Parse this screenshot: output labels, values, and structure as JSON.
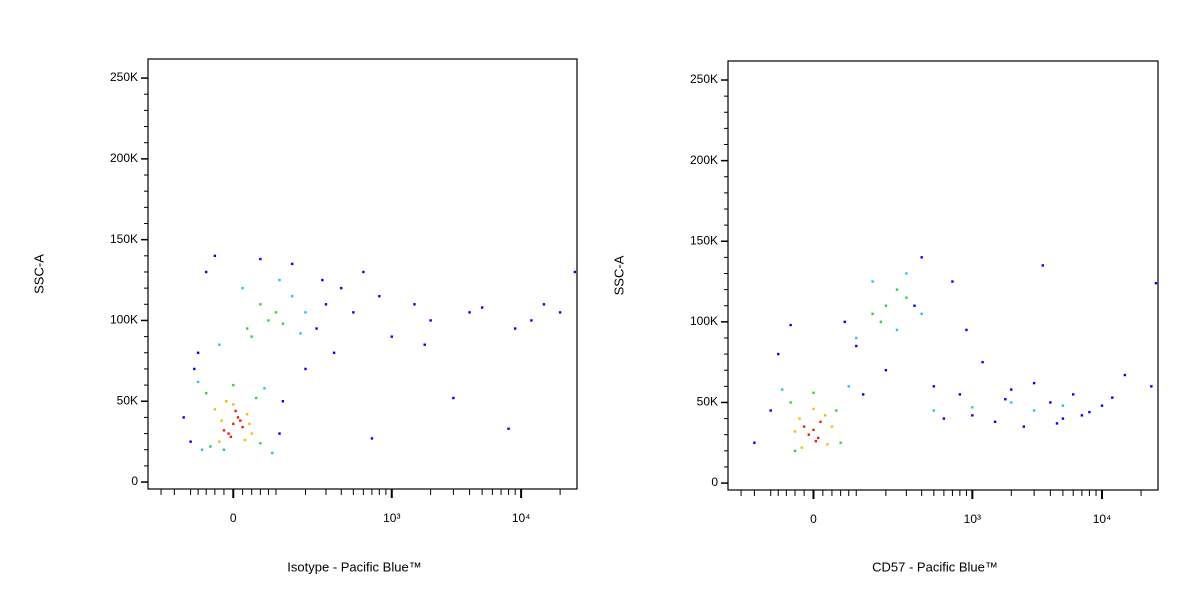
{
  "chart_data": [
    {
      "type": "scatter",
      "x_label": "Isotype - Pacific Blue™",
      "y_label": "SSC-A",
      "xscale": "asinh",
      "xlim": [
        -260,
        27000
      ],
      "ylim": [
        -4300,
        261800
      ],
      "xticks": [
        0,
        {
          "value": 1000,
          "label": "10³"
        },
        {
          "value": 10000,
          "label": "10⁴"
        }
      ],
      "xticks_minor": [
        -200,
        -150,
        -100,
        -80,
        -60,
        -40,
        -20,
        20,
        40,
        60,
        80,
        100,
        200,
        300,
        400,
        500,
        600,
        700,
        800,
        900,
        2000,
        3000,
        4000,
        5000,
        6000,
        7000,
        8000,
        9000,
        20000
      ],
      "yticks": [
        0,
        {
          "value": 50000,
          "label": "50K"
        },
        {
          "value": 100000,
          "label": "100K"
        },
        {
          "value": 150000,
          "label": "150K"
        },
        {
          "value": 200000,
          "label": "200K"
        },
        {
          "value": 250000,
          "label": "250K"
        }
      ],
      "yticks_minor": [
        10000,
        20000,
        30000,
        40000,
        60000,
        70000,
        80000,
        90000,
        110000,
        120000,
        130000,
        140000,
        160000,
        170000,
        180000,
        190000,
        210000,
        220000,
        230000,
        240000
      ],
      "series": [
        {
          "color": "#0000ff",
          "x": [
            -120,
            -100,
            120,
            110,
            -90,
            250,
            300,
            350,
            400,
            -60,
            -40,
            150,
            500,
            200,
            280,
            600,
            800,
            1000,
            1500,
            2000,
            3000,
            5000,
            8000,
            12000,
            20000,
            26000,
            700,
            1800,
            9000,
            15000,
            4000,
            -80,
            60
          ],
          "y": [
            40000,
            25000,
            50000,
            30000,
            70000,
            95000,
            110000,
            80000,
            120000,
            130000,
            140000,
            135000,
            105000,
            70000,
            125000,
            130000,
            115000,
            90000,
            110000,
            100000,
            52000,
            108000,
            33000,
            100000,
            105000,
            130000,
            27000,
            85000,
            95000,
            110000,
            105000,
            80000,
            138000
          ]
        },
        {
          "color": "#20c4ec",
          "x": [
            -80,
            70,
            -70,
            90,
            150,
            20,
            180,
            110,
            -30,
            200
          ],
          "y": [
            62000,
            58000,
            20000,
            18000,
            115000,
            120000,
            92000,
            125000,
            85000,
            105000
          ]
        },
        {
          "color": "#30d040",
          "x": [
            -60,
            50,
            -50,
            60,
            0,
            30,
            80,
            100,
            60,
            120,
            -20,
            40
          ],
          "y": [
            55000,
            52000,
            22000,
            24000,
            60000,
            95000,
            100000,
            105000,
            110000,
            98000,
            20000,
            90000
          ]
        },
        {
          "color": "#f0c000",
          "x": [
            -40,
            30,
            -30,
            40,
            -15,
            25,
            0,
            -25,
            35
          ],
          "y": [
            45000,
            42000,
            25000,
            30000,
            50000,
            26000,
            48000,
            38000,
            36000
          ]
        },
        {
          "color": "#e82010",
          "x": [
            -20,
            0,
            10,
            -10,
            20,
            5,
            -5,
            15
          ],
          "y": [
            32000,
            36000,
            40000,
            30000,
            34000,
            44000,
            28000,
            38000
          ]
        }
      ]
    },
    {
      "type": "scatter",
      "x_label": "CD57 - Pacific Blue™",
      "y_label": "SSC-A",
      "xscale": "asinh",
      "xlim": [
        -260,
        27000
      ],
      "ylim": [
        -4300,
        261800
      ],
      "xticks": [
        0,
        {
          "value": 1000,
          "label": "10³"
        },
        {
          "value": 10000,
          "label": "10⁴"
        }
      ],
      "xticks_minor": [
        -200,
        -150,
        -100,
        -80,
        -60,
        -40,
        -20,
        20,
        40,
        60,
        80,
        100,
        200,
        300,
        400,
        500,
        600,
        700,
        800,
        900,
        2000,
        3000,
        4000,
        5000,
        6000,
        7000,
        8000,
        9000,
        20000
      ],
      "yticks": [
        0,
        {
          "value": 50000,
          "label": "50K"
        },
        {
          "value": 100000,
          "label": "100K"
        },
        {
          "value": 150000,
          "label": "150K"
        },
        {
          "value": 200000,
          "label": "200K"
        },
        {
          "value": 250000,
          "label": "250K"
        }
      ],
      "yticks_minor": [
        10000,
        20000,
        30000,
        40000,
        60000,
        70000,
        80000,
        90000,
        110000,
        120000,
        130000,
        140000,
        160000,
        170000,
        180000,
        190000,
        210000,
        220000,
        230000,
        240000
      ],
      "series": [
        {
          "color": "#0000ff",
          "x": [
            -150,
            -100,
            120,
            -80,
            70,
            500,
            600,
            800,
            1000,
            1500,
            2000,
            2500,
            3000,
            4000,
            5000,
            6000,
            8000,
            10000,
            12000,
            400,
            700,
            900,
            1200,
            3500,
            7000,
            200,
            -50,
            350,
            1800,
            15000,
            24000,
            26000,
            100,
            4500
          ],
          "y": [
            25000,
            45000,
            55000,
            80000,
            100000,
            60000,
            40000,
            55000,
            42000,
            38000,
            58000,
            35000,
            62000,
            50000,
            40000,
            55000,
            44000,
            48000,
            53000,
            140000,
            125000,
            95000,
            75000,
            135000,
            42000,
            70000,
            98000,
            110000,
            52000,
            67000,
            60000,
            124000,
            85000,
            37000
          ]
        },
        {
          "color": "#20c4ec",
          "x": [
            -70,
            80,
            100,
            150,
            300,
            400,
            250,
            2000,
            3000,
            5000,
            1000,
            500
          ],
          "y": [
            58000,
            60000,
            90000,
            125000,
            130000,
            105000,
            95000,
            50000,
            45000,
            48000,
            47000,
            45000
          ]
        },
        {
          "color": "#30d040",
          "x": [
            -50,
            50,
            0,
            60,
            200,
            250,
            180,
            300,
            -40,
            150
          ],
          "y": [
            50000,
            45000,
            56000,
            25000,
            110000,
            120000,
            100000,
            115000,
            20000,
            105000
          ]
        },
        {
          "color": "#f0c000",
          "x": [
            -30,
            25,
            -25,
            30,
            0,
            -40,
            40
          ],
          "y": [
            40000,
            42000,
            22000,
            24000,
            46000,
            32000,
            35000
          ]
        },
        {
          "color": "#e82010",
          "x": [
            -10,
            0,
            10,
            -20,
            15,
            5
          ],
          "y": [
            30000,
            33000,
            28000,
            35000,
            38000,
            26000
          ]
        }
      ]
    }
  ]
}
